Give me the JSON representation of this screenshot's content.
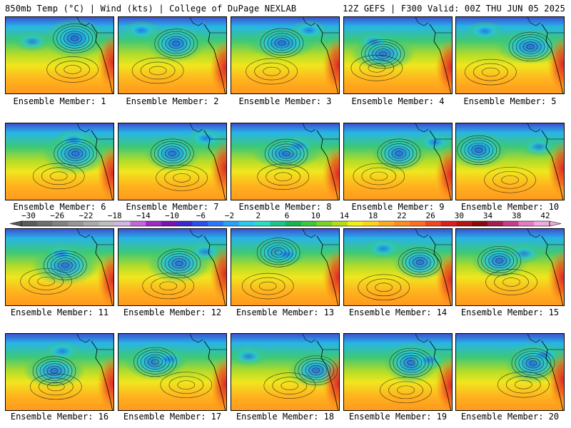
{
  "header": {
    "left": "850mb Temp (°C) | Wind (kts) | College of DuPage NEXLAB",
    "right": "12Z GEFS | F300 Valid: 00Z THU JUN 05 2025"
  },
  "members": [
    "Ensemble Member: 1",
    "Ensemble Member: 2",
    "Ensemble Member: 3",
    "Ensemble Member: 4",
    "Ensemble Member: 5",
    "Ensemble Member: 6",
    "Ensemble Member: 7",
    "Ensemble Member: 8",
    "Ensemble Member: 9",
    "Ensemble Member: 10",
    "Ensemble Member: 11",
    "Ensemble Member: 12",
    "Ensemble Member: 13",
    "Ensemble Member: 14",
    "Ensemble Member: 15",
    "Ensemble Member: 16",
    "Ensemble Member: 17",
    "Ensemble Member: 18",
    "Ensemble Member: 19",
    "Ensemble Member: 20"
  ],
  "colorbar": {
    "labels": [
      "−30",
      "−26",
      "−22",
      "−18",
      "−14",
      "−10",
      "−6",
      "−2",
      "2",
      "6",
      "10",
      "14",
      "18",
      "22",
      "26",
      "30",
      "34",
      "38",
      "42"
    ],
    "colors": [
      "#5a5a5a",
      "#6e6e6e",
      "#828282",
      "#969696",
      "#aaaaaa",
      "#bebebe",
      "#d2b4e6",
      "#c864dc",
      "#a028c8",
      "#7814b4",
      "#3c28d2",
      "#2850f0",
      "#2878ff",
      "#28a0ff",
      "#28c8f0",
      "#28dcc8",
      "#14c88c",
      "#14b450",
      "#3cc83c",
      "#78d228",
      "#b4dc14",
      "#f0f014",
      "#ffd21e",
      "#ffaa1e",
      "#ff8c1e",
      "#ff6e1e",
      "#f0461e",
      "#dc1e1e",
      "#b41414",
      "#8c0a0a",
      "#a01e50",
      "#c83c8c",
      "#e678c8",
      "#f0aadc"
    ]
  }
}
